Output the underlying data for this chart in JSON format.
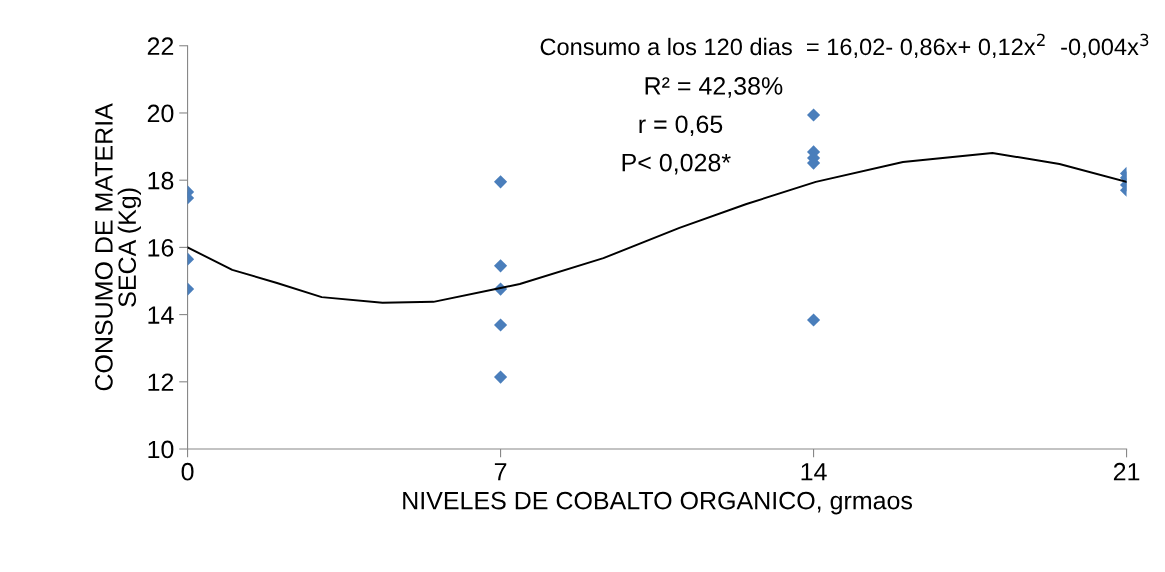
{
  "chart_data": {
    "type": "scatter",
    "xlabel": "NIVELES DE COBALTO ORGANICO, grmaos",
    "ylabel": "CONSUMO DE MATERIA\nSECA (Kg)",
    "xlim": [
      0,
      21
    ],
    "xticks": [
      0,
      7,
      14,
      21
    ],
    "ylim": [
      10,
      22
    ],
    "yticks": [
      10,
      12,
      14,
      16,
      18,
      20,
      22
    ],
    "grid": false,
    "legend": false,
    "series": [
      {
        "color": "#4a7ebb",
        "marker": "diamond",
        "x": [
          0,
          0,
          0,
          0,
          7,
          7,
          7,
          7,
          7,
          14,
          14,
          14,
          14,
          14,
          21,
          21,
          21,
          21
        ],
        "values": [
          17.65,
          17.47,
          15.65,
          14.76,
          17.95,
          15.45,
          14.76,
          13.69,
          12.14,
          19.94,
          18.84,
          18.66,
          18.51,
          13.84,
          18.2,
          18.07,
          17.86,
          17.7
        ]
      },
      {
        "type": "line",
        "color": "#000000",
        "marker": "none",
        "line_style": "solid",
        "x": [
          0,
          1,
          2,
          3,
          4.36,
          5.5,
          7,
          7.43,
          9.3,
          11,
          12.5,
          14.05,
          16,
          18,
          19.5,
          21
        ],
        "values": [
          16.0,
          15.33,
          14.94,
          14.52,
          14.35,
          14.38,
          14.79,
          14.91,
          15.68,
          16.58,
          17.29,
          17.95,
          18.54,
          18.81,
          18.48,
          17.95
        ]
      }
    ],
    "annotations": [
      "Consumo a los 120 dias  = 16,02- 0,86x+ 0,12x$^{2}$  -0,004x$^{3}$",
      "R² = 42,38%",
      "r = 0,65",
      "P< 0,028*"
    ]
  }
}
